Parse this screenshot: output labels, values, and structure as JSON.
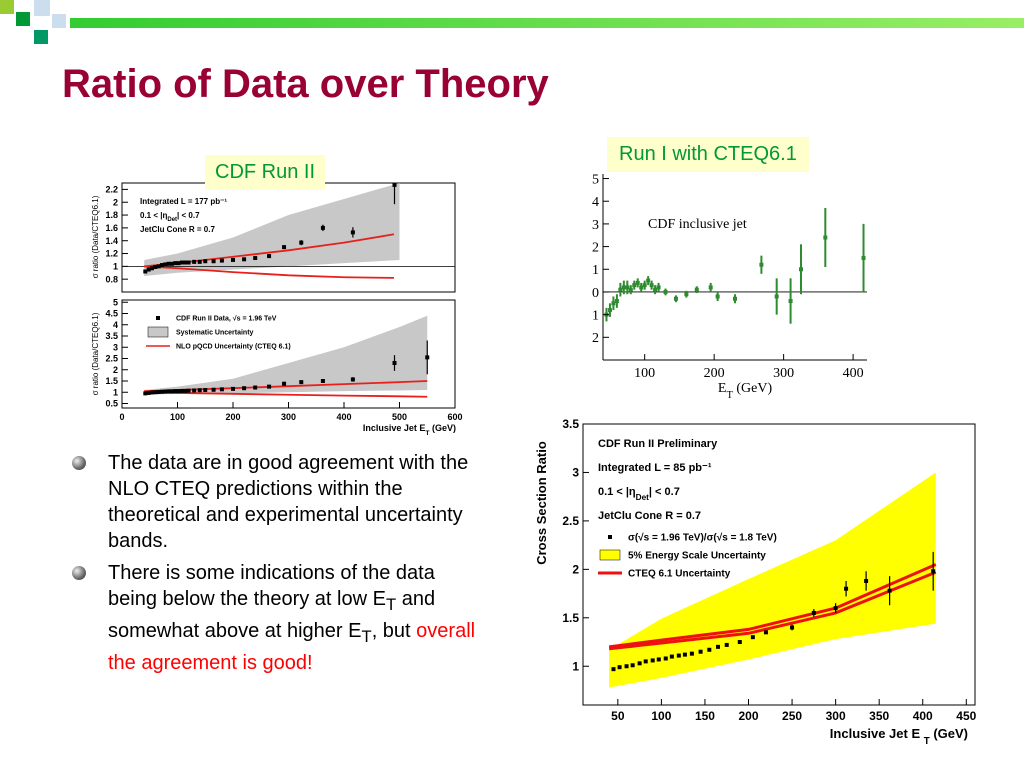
{
  "title": "Ratio of Data over Theory",
  "boxes": [
    "CDF Run II",
    "Run I with CTEQ6.1"
  ],
  "bullets": [
    [
      "The data are in good agreement with the NLO CTEQ predictions within the theoretical and experimental uncertainty bands."
    ],
    [
      "There is some indications of the data being below the theory at low E",
      {
        "sub": "T"
      },
      " and somewhat above at higher E",
      {
        "sub": "T"
      },
      ", but ",
      {
        "red": "overall the agreement is good!"
      }
    ]
  ],
  "chart_data": [
    {
      "type": "scatter",
      "ylabel": "σ ratio (Data/CTEQ6.1)",
      "annotations": [
        "Integrated L = 177 pb⁻¹",
        [
          "0.1 < |η",
          {
            "sub": "Det"
          },
          "| < 0.7"
        ],
        "JetClu Cone R = 0.7"
      ],
      "xlim": [
        0,
        600
      ],
      "ylim": [
        0.6,
        2.3
      ],
      "yticks": [
        0.8,
        1,
        1.2,
        1.4,
        1.6,
        1.8,
        2,
        2.2
      ],
      "reference_line": 1,
      "color": "#000000",
      "band_color": "#c8c8c8",
      "curve_color": "#e8201c",
      "x": [
        42,
        48,
        54,
        60,
        66,
        72,
        78,
        84,
        90,
        96,
        102,
        108,
        114,
        120,
        130,
        140,
        150,
        165,
        180,
        200,
        220,
        240,
        265,
        292,
        323,
        362,
        416,
        491
      ],
      "values": [
        0.92,
        0.95,
        0.97,
        0.99,
        1.0,
        1.02,
        1.03,
        1.04,
        1.04,
        1.05,
        1.05,
        1.06,
        1.06,
        1.06,
        1.07,
        1.07,
        1.08,
        1.08,
        1.09,
        1.1,
        1.11,
        1.13,
        1.16,
        1.3,
        1.37,
        1.6,
        1.53,
        2.27
      ],
      "errors": [
        0.01,
        0.01,
        0.01,
        0.01,
        0.01,
        0.01,
        0.01,
        0.01,
        0.01,
        0.01,
        0.01,
        0.01,
        0.01,
        0.01,
        0.01,
        0.01,
        0.01,
        0.01,
        0.01,
        0.01,
        0.01,
        0.01,
        0.02,
        0.03,
        0.04,
        0.05,
        0.08,
        0.3
      ],
      "band": {
        "x": [
          40,
          100,
          200,
          300,
          400,
          500
        ],
        "low": [
          0.85,
          0.9,
          0.95,
          1.0,
          1.05,
          1.1
        ],
        "high": [
          1.1,
          1.2,
          1.45,
          1.8,
          2.05,
          2.3
        ]
      },
      "curves": {
        "x": [
          40,
          100,
          200,
          300,
          400,
          490
        ],
        "upper": [
          1.0,
          1.05,
          1.15,
          1.25,
          1.37,
          1.5
        ],
        "lower": [
          1.0,
          0.97,
          0.91,
          0.86,
          0.83,
          0.82
        ]
      }
    },
    {
      "type": "scatter",
      "ylabel": "σ ratio (Data/CTEQ6.1)",
      "xlabel": [
        "Inclusive Jet E",
        {
          "sub": "T"
        },
        " (GeV)"
      ],
      "legend": [
        {
          "label": "CDF Run II Data,  √s = 1.96 TeV",
          "kind": "marker"
        },
        {
          "label": "Systematic Uncertainty",
          "kind": "band"
        },
        {
          "label": "NLO pQCD Uncertainty (CTEQ 6.1)",
          "kind": "line"
        }
      ],
      "xlim": [
        0,
        600
      ],
      "ylim": [
        0.3,
        5.1
      ],
      "xticks": [
        0,
        100,
        200,
        300,
        400,
        500,
        600
      ],
      "yticks": [
        0.5,
        1,
        1.5,
        2,
        2.5,
        3,
        3.5,
        4,
        4.5,
        5
      ],
      "color": "#000000",
      "band_color": "#c8c8c8",
      "curve_color": "#e8201c",
      "x": [
        42,
        48,
        54,
        60,
        66,
        72,
        78,
        84,
        90,
        96,
        102,
        108,
        114,
        120,
        130,
        140,
        150,
        165,
        180,
        200,
        220,
        240,
        265,
        292,
        323,
        362,
        416,
        491,
        550
      ],
      "values": [
        0.95,
        0.97,
        0.99,
        1.0,
        1.01,
        1.02,
        1.03,
        1.04,
        1.04,
        1.05,
        1.05,
        1.06,
        1.06,
        1.07,
        1.08,
        1.09,
        1.1,
        1.11,
        1.13,
        1.15,
        1.18,
        1.21,
        1.25,
        1.38,
        1.45,
        1.5,
        1.57,
        2.3,
        2.55
      ],
      "errors": [
        0.02,
        0.02,
        0.02,
        0.02,
        0.02,
        0.02,
        0.02,
        0.02,
        0.02,
        0.02,
        0.02,
        0.02,
        0.02,
        0.02,
        0.02,
        0.02,
        0.02,
        0.02,
        0.02,
        0.02,
        0.02,
        0.02,
        0.03,
        0.04,
        0.05,
        0.07,
        0.1,
        0.35,
        0.75
      ],
      "band": {
        "x": [
          40,
          100,
          200,
          300,
          400,
          500,
          550
        ],
        "low": [
          0.9,
          0.92,
          0.95,
          1.0,
          1.05,
          1.08,
          1.1
        ],
        "high": [
          1.1,
          1.25,
          1.6,
          2.3,
          3.0,
          3.9,
          4.4
        ]
      },
      "curves": {
        "x": [
          40,
          100,
          200,
          300,
          400,
          500,
          550
        ],
        "upper": [
          1.05,
          1.1,
          1.18,
          1.27,
          1.36,
          1.45,
          1.5
        ],
        "lower": [
          1.0,
          0.97,
          0.93,
          0.89,
          0.85,
          0.82,
          0.8
        ]
      }
    },
    {
      "type": "scatter",
      "xlabel": [
        "E",
        {
          "sub": "T"
        },
        "   (GeV)"
      ],
      "annotations": [
        "CDF inclusive jet"
      ],
      "xlim": [
        40,
        420
      ],
      "ylim": [
        -3,
        5.2
      ],
      "xticks": [
        100,
        200,
        300,
        400
      ],
      "yticks": [
        5,
        4,
        3,
        2,
        1,
        0,
        {
          "value": -1,
          "label": "1"
        },
        {
          "value": -2,
          "label": "2"
        }
      ],
      "reference_line": 0,
      "color": "#2e8b2e",
      "x": [
        45,
        50,
        55,
        60,
        65,
        70,
        75,
        80,
        85,
        90,
        95,
        100,
        105,
        110,
        115,
        120,
        130,
        145,
        160,
        175,
        195,
        205,
        230,
        268,
        290,
        310,
        325,
        360,
        415
      ],
      "values": [
        -1.0,
        -0.8,
        -0.5,
        -0.4,
        0.1,
        0.2,
        0.2,
        0.1,
        0.3,
        0.4,
        0.2,
        0.3,
        0.5,
        0.3,
        0.1,
        0.2,
        0.0,
        -0.3,
        -0.1,
        0.1,
        0.2,
        -0.2,
        -0.3,
        1.2,
        -0.2,
        -0.4,
        1.0,
        2.4,
        1.5
      ],
      "errors": [
        0.3,
        0.3,
        0.3,
        0.3,
        0.3,
        0.3,
        0.3,
        0.2,
        0.2,
        0.2,
        0.2,
        0.2,
        0.2,
        0.2,
        0.2,
        0.2,
        0.15,
        0.15,
        0.15,
        0.15,
        0.2,
        0.2,
        0.2,
        0.4,
        0.8,
        1.0,
        1.1,
        1.3,
        1.5
      ]
    },
    {
      "type": "scatter",
      "ylabel": "Cross Section Ratio",
      "xlabel": [
        "Inclusive Jet E ",
        {
          "sub": "T"
        },
        " (GeV)"
      ],
      "annotations": [
        "CDF Run II Preliminary",
        "Integrated L = 85 pb⁻¹",
        [
          "0.1 < |η",
          {
            "sub": "Det"
          },
          "| < 0.7"
        ],
        "JetClu Cone R = 0.7"
      ],
      "legend": [
        {
          "label": "σ(√s = 1.96 TeV)/σ(√s = 1.8 TeV)",
          "kind": "marker"
        },
        {
          "label": "5% Energy Scale Uncertainty",
          "kind": "band"
        },
        {
          "label": "CTEQ 6.1 Uncertainty",
          "kind": "line"
        }
      ],
      "xlim": [
        10,
        460
      ],
      "ylim": [
        0.6,
        3.5
      ],
      "xticks": [
        50,
        100,
        150,
        200,
        250,
        300,
        350,
        400,
        450
      ],
      "yticks": [
        1,
        1.5,
        2,
        2.5,
        3,
        3.5
      ],
      "color": "#000000",
      "band_color": "#ffff00",
      "curve_color": "#ee1111",
      "x": [
        45,
        52,
        60,
        67,
        75,
        82,
        90,
        97,
        105,
        112,
        120,
        127,
        135,
        145,
        155,
        165,
        175,
        190,
        205,
        220,
        250,
        275,
        300,
        312,
        335,
        362,
        412
      ],
      "values": [
        0.97,
        0.99,
        1.0,
        1.01,
        1.03,
        1.05,
        1.06,
        1.07,
        1.08,
        1.1,
        1.11,
        1.12,
        1.13,
        1.15,
        1.17,
        1.2,
        1.22,
        1.25,
        1.3,
        1.35,
        1.4,
        1.55,
        1.6,
        1.8,
        1.88,
        1.78,
        1.98
      ],
      "errors": [
        0.01,
        0.01,
        0.01,
        0.01,
        0.01,
        0.01,
        0.01,
        0.01,
        0.01,
        0.01,
        0.01,
        0.01,
        0.01,
        0.01,
        0.01,
        0.01,
        0.01,
        0.01,
        0.01,
        0.01,
        0.03,
        0.04,
        0.05,
        0.08,
        0.1,
        0.15,
        0.2
      ],
      "band": {
        "x": [
          40,
          100,
          200,
          300,
          415
        ],
        "low": [
          0.78,
          0.88,
          1.07,
          1.28,
          1.44
        ],
        "high": [
          1.17,
          1.49,
          1.9,
          2.3,
          3.0
        ]
      },
      "curves": {
        "x": [
          40,
          100,
          200,
          300,
          415
        ],
        "upper": [
          1.2,
          1.27,
          1.38,
          1.6,
          2.05
        ],
        "lower": [
          1.18,
          1.24,
          1.34,
          1.55,
          1.97
        ]
      }
    }
  ]
}
